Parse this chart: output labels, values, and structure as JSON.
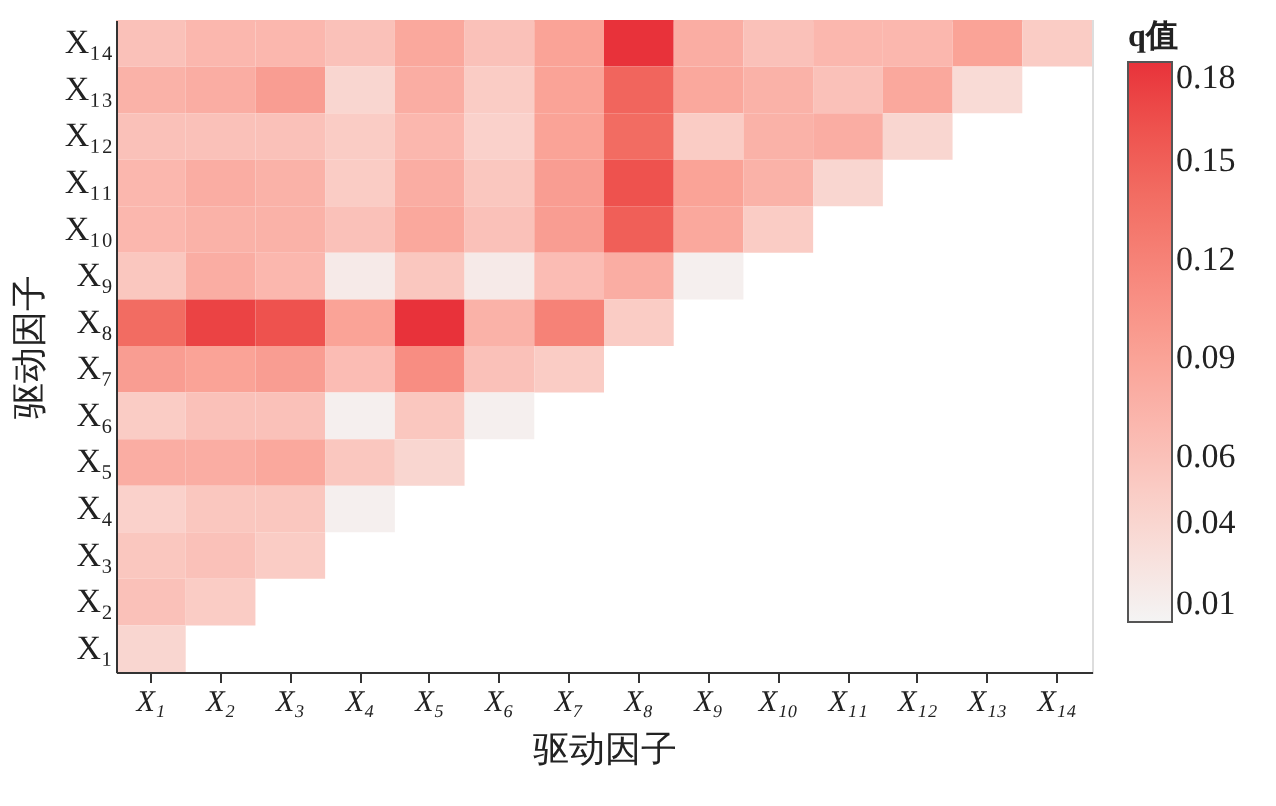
{
  "chart_data": {
    "type": "heatmap",
    "xlabel": "驱动因子",
    "ylabel": "驱动因子",
    "legend_title": "q值",
    "categories": [
      "X₁",
      "X₂",
      "X₃",
      "X₄",
      "X₅",
      "X₆",
      "X₇",
      "X₈",
      "X₉",
      "X₁₀",
      "X₁₁",
      "X₁₂",
      "X₁₃",
      "X₁₄"
    ],
    "y_categories": [
      "X₁₄",
      "X₁₃",
      "X₁₂",
      "X₁₁",
      "X₁₀",
      "X₉",
      "X₈",
      "X₇",
      "X₆",
      "X₅",
      "X₄",
      "X₃",
      "X₂",
      "X₁"
    ],
    "cells": [
      [
        0.06,
        0.07,
        0.07,
        0.06,
        0.085,
        0.06,
        0.09,
        0.18,
        0.08,
        0.06,
        0.07,
        0.07,
        0.09,
        0.05
      ],
      [
        0.075,
        0.08,
        0.095,
        0.04,
        0.08,
        0.05,
        0.09,
        0.145,
        0.085,
        0.075,
        0.06,
        0.085,
        0.035,
        null
      ],
      [
        0.06,
        0.06,
        0.06,
        0.05,
        0.07,
        0.045,
        0.09,
        0.14,
        0.05,
        0.075,
        0.08,
        0.04,
        null,
        null
      ],
      [
        0.07,
        0.08,
        0.075,
        0.05,
        0.08,
        0.055,
        0.095,
        0.16,
        0.09,
        0.075,
        0.04,
        null,
        null,
        null
      ],
      [
        0.07,
        0.075,
        0.075,
        0.06,
        0.085,
        0.06,
        0.095,
        0.15,
        0.085,
        0.05,
        null,
        null,
        null,
        null
      ],
      [
        0.055,
        0.08,
        0.07,
        0.02,
        0.055,
        0.02,
        0.065,
        0.08,
        0.015,
        null,
        null,
        null,
        null,
        null
      ],
      [
        0.14,
        0.17,
        0.16,
        0.09,
        0.18,
        0.075,
        0.12,
        0.05,
        null,
        null,
        null,
        null,
        null,
        null
      ],
      [
        0.095,
        0.09,
        0.095,
        0.065,
        0.11,
        0.06,
        0.05,
        null,
        null,
        null,
        null,
        null,
        null,
        null
      ],
      [
        0.05,
        0.06,
        0.06,
        0.015,
        0.055,
        0.015,
        null,
        null,
        null,
        null,
        null,
        null,
        null,
        null
      ],
      [
        0.08,
        0.08,
        0.085,
        0.055,
        0.04,
        null,
        null,
        null,
        null,
        null,
        null,
        null,
        null,
        null
      ],
      [
        0.045,
        0.055,
        0.055,
        0.015,
        null,
        null,
        null,
        null,
        null,
        null,
        null,
        null,
        null,
        null
      ],
      [
        0.055,
        0.06,
        0.05,
        null,
        null,
        null,
        null,
        null,
        null,
        null,
        null,
        null,
        null,
        null
      ],
      [
        0.06,
        0.05,
        null,
        null,
        null,
        null,
        null,
        null,
        null,
        null,
        null,
        null,
        null,
        null
      ],
      [
        0.04,
        null,
        null,
        null,
        null,
        null,
        null,
        null,
        null,
        null,
        null,
        null,
        null,
        null
      ]
    ],
    "clim": [
      0.01,
      0.18
    ],
    "cticks": [
      0.01,
      0.04,
      0.06,
      0.09,
      0.12,
      0.15,
      0.18
    ],
    "colors": [
      "#f4f4f4",
      "#e8323a"
    ]
  }
}
